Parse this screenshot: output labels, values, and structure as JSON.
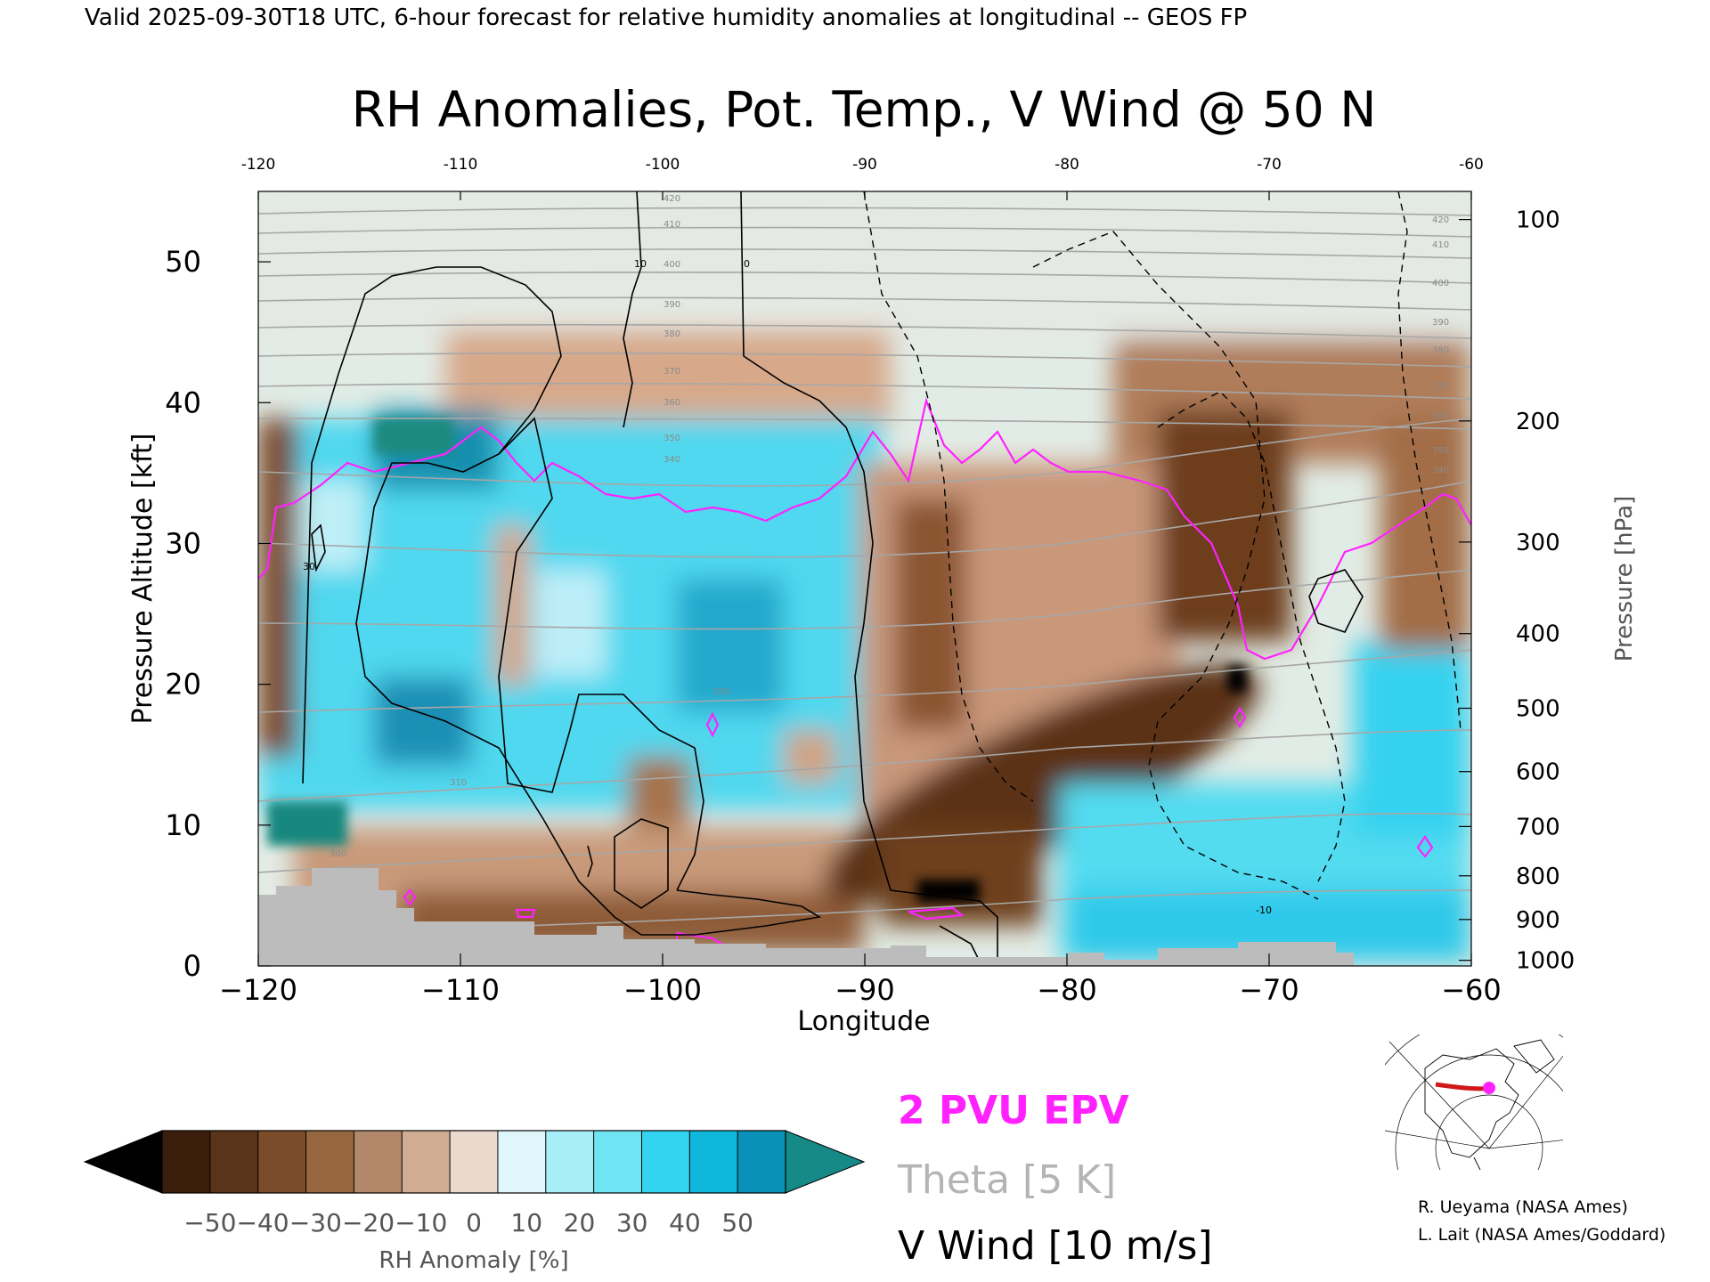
{
  "header": {
    "valid_line": "Valid 2025-09-30T18 UTC, 6-hour forecast for relative humidity anomalies at longitudinal -- GEOS FP"
  },
  "chart_data": {
    "type": "heatmap",
    "title": "RH Anomalies, Pot. Temp., V Wind @ 50 N",
    "xlabel": "Longitude",
    "ylabel": "Pressure Altitude [kft]",
    "y2label": "Pressure [hPa]",
    "xlim": [
      -120,
      -60
    ],
    "ylim": [
      0,
      55
    ],
    "x_ticks": [
      "-120",
      "-110",
      "-100",
      "-90",
      "-80",
      "-70",
      "-60"
    ],
    "top_ticks": [
      "-120",
      "-110",
      "-100",
      "-90",
      "-80",
      "-70",
      "-60"
    ],
    "y_ticks": [
      "0",
      "10",
      "20",
      "30",
      "40",
      "50"
    ],
    "pressure_ticks": [
      {
        "label": "100",
        "kft": 53.0
      },
      {
        "label": "200",
        "kft": 38.7
      },
      {
        "label": "300",
        "kft": 30.1
      },
      {
        "label": "400",
        "kft": 23.6
      },
      {
        "label": "500",
        "kft": 18.3
      },
      {
        "label": "600",
        "kft": 13.8
      },
      {
        "label": "700",
        "kft": 9.9
      },
      {
        "label": "800",
        "kft": 6.4
      },
      {
        "label": "900",
        "kft": 3.3
      },
      {
        "label": "1000",
        "kft": 0.4
      }
    ],
    "colorbar": {
      "label": "RH Anomaly [%]",
      "ticks": [
        "-50",
        "-40",
        "-30",
        "-20",
        "-10",
        "0",
        "10",
        "20",
        "30",
        "40",
        "50"
      ],
      "colors": [
        "#3b1f0c",
        "#5a3418",
        "#7a4c2a",
        "#97673f",
        "#b3876a",
        "#d0ac93",
        "#ecd9ce",
        "#dff6fa",
        "#a8eef8",
        "#6fe4f3",
        "#33d5ee",
        "#10b7dc",
        "#0991b7"
      ],
      "under_color": "#000000",
      "over_color": "#168a86"
    },
    "legend": [
      {
        "label": "2 PVU EPV",
        "color": "#ff22ff"
      },
      {
        "label": "Theta [5 K]",
        "color": "#b4b4b4"
      },
      {
        "label": "V Wind [10 m/s]",
        "color": "#000000"
      }
    ],
    "theta_labels": [
      "300",
      "310",
      "320",
      "340",
      "350",
      "360",
      "370",
      "380",
      "390",
      "400",
      "410",
      "420"
    ],
    "wind_labels": [
      "10",
      "0",
      "-10",
      "30"
    ],
    "terrain_color": "#bcbcbc",
    "credits": [
      "R. Ueyama (NASA Ames)",
      "L. Lait (NASA Ames/Goddard)"
    ]
  }
}
